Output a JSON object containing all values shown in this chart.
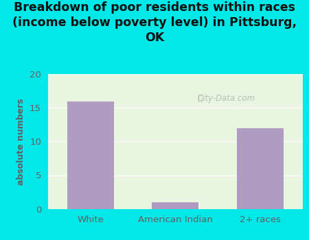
{
  "categories": [
    "White",
    "American Indian",
    "2+ races"
  ],
  "values": [
    16,
    1,
    12
  ],
  "bar_color": "#b09cc0",
  "title": "Breakdown of poor residents within races\n(income below poverty level) in Pittsburg,\nOK",
  "ylabel": "absolute numbers",
  "ylim": [
    0,
    20
  ],
  "yticks": [
    0,
    5,
    10,
    15,
    20
  ],
  "bg_outer": "#00e8e8",
  "bg_plot": "#e8f5e0",
  "title_fontsize": 12.5,
  "label_fontsize": 9,
  "tick_fontsize": 9.5,
  "watermark": "City-Data.com",
  "bar_width": 0.55,
  "text_color": "#606060"
}
